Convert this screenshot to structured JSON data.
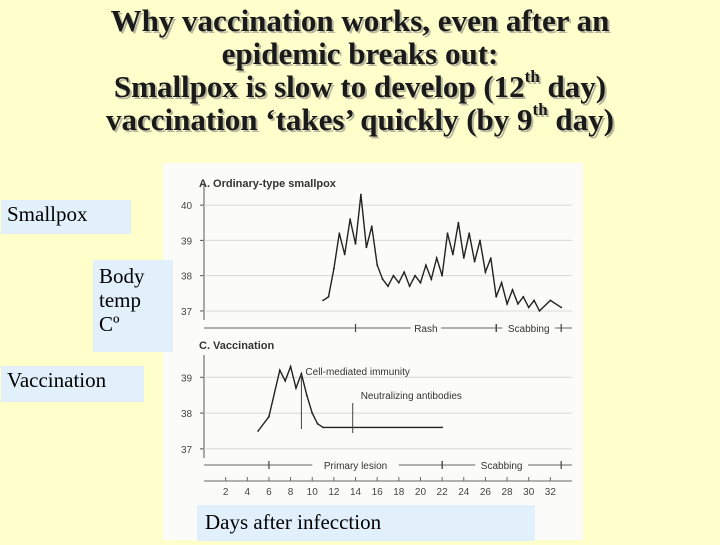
{
  "title": {
    "line1": "Why vaccination works, even after an",
    "line2": "epidemic breaks out:",
    "line3_pre": "Smallpox is slow to develop (12",
    "line3_sup": "th",
    "line3_post": " day)",
    "line4_pre": "vaccination ‘takes’ quickly (by 9",
    "line4_sup": "th",
    "line4_post": " day)"
  },
  "labels": {
    "smallpox": "Smallpox",
    "body_temp": [
      "Body",
      "temp",
      "Cº"
    ],
    "vaccination": "Vaccination",
    "days": "Days after infecction"
  },
  "chart_data": [
    {
      "type": "line",
      "title": "A. Ordinary-type smallpox",
      "ylim": [
        36.8,
        40.4
      ],
      "y_ticks": [
        37,
        38,
        39,
        40
      ],
      "xlim": [
        0,
        34
      ],
      "series": [
        {
          "values": [
            [
              11,
              37.3
            ],
            [
              11.5,
              37.4
            ],
            [
              12,
              38.2
            ],
            [
              12.5,
              39.2
            ],
            [
              13,
              38.6
            ],
            [
              13.5,
              39.6
            ],
            [
              14,
              38.9
            ],
            [
              14.5,
              40.3
            ],
            [
              15,
              38.8
            ],
            [
              15.5,
              39.4
            ],
            [
              16,
              38.3
            ],
            [
              16.5,
              37.9
            ],
            [
              17,
              37.7
            ],
            [
              17.5,
              38.0
            ],
            [
              18,
              37.8
            ],
            [
              18.5,
              38.1
            ],
            [
              19,
              37.7
            ],
            [
              19.5,
              38.0
            ],
            [
              20,
              37.8
            ],
            [
              20.5,
              38.3
            ],
            [
              21,
              37.9
            ],
            [
              21.5,
              38.5
            ],
            [
              22,
              38.0
            ],
            [
              22.5,
              39.2
            ],
            [
              23,
              38.6
            ],
            [
              23.5,
              39.5
            ],
            [
              24,
              38.5
            ],
            [
              24.5,
              39.2
            ],
            [
              25,
              38.4
            ],
            [
              25.5,
              39.0
            ],
            [
              26,
              38.1
            ],
            [
              26.5,
              38.5
            ],
            [
              27,
              37.4
            ],
            [
              27.5,
              37.8
            ],
            [
              28,
              37.2
            ],
            [
              28.5,
              37.6
            ],
            [
              29,
              37.2
            ],
            [
              29.5,
              37.4
            ],
            [
              30,
              37.1
            ],
            [
              30.5,
              37.3
            ],
            [
              31,
              37.0
            ],
            [
              32,
              37.3
            ],
            [
              33,
              37.1
            ]
          ]
        }
      ],
      "bars": [
        {
          "label": "Rash",
          "x_start": 14,
          "x_end": 27
        },
        {
          "label": "Scabbing",
          "x_start": 27,
          "x_end": 33
        }
      ]
    },
    {
      "type": "line",
      "title": "C. Vaccination",
      "ylim": [
        36.8,
        39.4
      ],
      "y_ticks": [
        37,
        38,
        39
      ],
      "xlim": [
        0,
        34
      ],
      "series": [
        {
          "values": [
            [
              5,
              37.5
            ],
            [
              6,
              37.9
            ],
            [
              7,
              39.2
            ],
            [
              7.5,
              38.9
            ],
            [
              8,
              39.3
            ],
            [
              8.5,
              38.7
            ],
            [
              9,
              39.1
            ],
            [
              9.5,
              38.5
            ],
            [
              10,
              38.0
            ],
            [
              10.5,
              37.7
            ],
            [
              11,
              37.6
            ],
            [
              22,
              37.6
            ]
          ]
        }
      ],
      "annotations": [
        {
          "text": "Cell-mediated immunity",
          "x": 9
        },
        {
          "text": "Neutralizing antibodies",
          "x": 13
        }
      ],
      "bars": [
        {
          "label": "Primary lesion",
          "x_start": 6,
          "x_end": 22
        },
        {
          "label": "Scabbing",
          "x_start": 22,
          "x_end": 33
        }
      ],
      "xlabel_ticks": [
        2,
        4,
        6,
        8,
        10,
        12,
        14,
        16,
        18,
        20,
        22,
        24,
        26,
        28,
        30,
        32
      ]
    }
  ]
}
